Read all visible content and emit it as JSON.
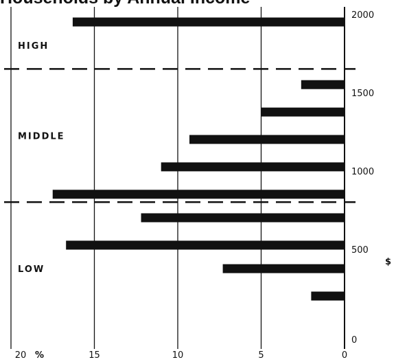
{
  "chart_data": {
    "type": "bar",
    "orientation": "horizontal",
    "direction": "right-to-left",
    "title": "Households by Annual Income",
    "x_unit": "%",
    "y_unit": "$",
    "xlim": [
      0,
      20
    ],
    "ylim": [
      0,
      2000
    ],
    "x_ticks": [
      "0",
      "5",
      "10",
      "15",
      "20"
    ],
    "y_ticks": [
      "0",
      "500",
      "1000",
      "1500",
      "2000"
    ],
    "bands": [
      {
        "label": "HIGH",
        "from": 1700,
        "to": 2000
      },
      {
        "label": "MIDDLE",
        "from": 850,
        "to": 1700
      },
      {
        "label": "LOW",
        "from": 0,
        "to": 850
      }
    ],
    "band_boundaries": [
      850,
      1700
    ],
    "bars": [
      {
        "y": 2000,
        "value": 16.3
      },
      {
        "y": 1600,
        "value": 2.6
      },
      {
        "y": 1425,
        "value": 5.0
      },
      {
        "y": 1250,
        "value": 9.3
      },
      {
        "y": 1075,
        "value": 11.0
      },
      {
        "y": 900,
        "value": 17.5
      },
      {
        "y": 750,
        "value": 12.2
      },
      {
        "y": 575,
        "value": 16.7
      },
      {
        "y": 425,
        "value": 7.3
      },
      {
        "y": 250,
        "value": 2.0
      }
    ],
    "grid": true,
    "colors": {
      "bar": "#111111",
      "background": "#ffffff",
      "line": "#111111"
    }
  }
}
